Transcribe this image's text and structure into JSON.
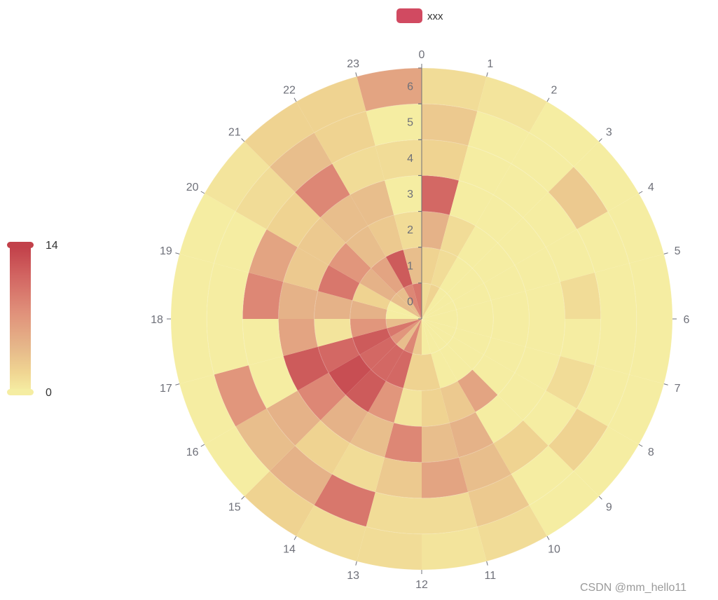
{
  "chart_data": {
    "type": "heatmap",
    "coordinate_system": "polar",
    "series": [
      {
        "name": "xxx"
      }
    ],
    "angle_axis": {
      "labels": [
        "0",
        "1",
        "2",
        "3",
        "4",
        "5",
        "6",
        "7",
        "8",
        "9",
        "10",
        "11",
        "12",
        "13",
        "14",
        "15",
        "16",
        "17",
        "18",
        "19",
        "20",
        "21",
        "22",
        "23"
      ],
      "direction": "clockwise",
      "start": "top"
    },
    "radius_axis": {
      "labels": [
        "0",
        "1",
        "2",
        "3",
        "4",
        "5",
        "6"
      ]
    },
    "visual_map": {
      "min": 0,
      "max": 14,
      "max_label": "14",
      "min_label": "0",
      "colors": [
        "#f5eda2",
        "#f0d592",
        "#e6b88a",
        "#e0907a",
        "#d26562",
        "#c2414a"
      ]
    },
    "legend_position": "top-center",
    "values": [
      [
        2,
        3,
        6,
        11,
        3,
        4,
        2
      ],
      [
        3,
        2,
        2,
        0,
        0,
        0,
        1
      ],
      [
        0,
        0,
        0,
        0,
        0,
        0,
        0
      ],
      [
        0,
        0,
        0,
        0,
        0,
        4,
        0
      ],
      [
        0,
        0,
        0,
        0,
        0,
        0,
        0
      ],
      [
        0,
        0,
        0,
        0,
        2,
        0,
        0
      ],
      [
        0,
        0,
        0,
        0,
        0,
        0,
        0
      ],
      [
        0,
        0,
        0,
        0,
        2,
        0,
        0
      ],
      [
        0,
        0,
        0,
        0,
        0,
        3,
        0
      ],
      [
        0,
        0,
        7,
        0,
        3,
        0,
        0
      ],
      [
        0,
        0,
        4,
        6,
        5,
        4,
        2
      ],
      [
        0,
        3,
        3,
        5,
        7,
        2,
        1
      ],
      [
        4,
        3,
        1,
        9,
        4,
        2,
        2
      ],
      [
        9,
        11,
        8,
        5,
        2,
        10,
        2
      ],
      [
        5,
        11,
        12,
        6,
        3,
        6,
        3
      ],
      [
        8,
        11,
        13,
        9,
        6,
        5,
        0
      ],
      [
        10,
        12,
        11,
        12,
        0,
        8,
        0
      ],
      [
        5,
        8,
        1,
        7,
        0,
        0,
        0
      ],
      [
        0,
        6,
        6,
        6,
        9,
        0,
        0
      ],
      [
        0,
        3,
        10,
        4,
        7,
        0,
        0
      ],
      [
        5,
        6,
        8,
        4,
        3,
        2,
        1
      ],
      [
        5,
        7,
        5,
        5,
        9,
        5,
        3
      ],
      [
        9,
        12,
        4,
        5,
        2,
        3,
        3
      ],
      [
        10,
        5,
        2,
        0,
        2,
        0,
        7
      ]
    ]
  },
  "legend": {
    "label": "xxx",
    "color": "#d14a61"
  },
  "watermark": "CSDN @mm_hello11"
}
